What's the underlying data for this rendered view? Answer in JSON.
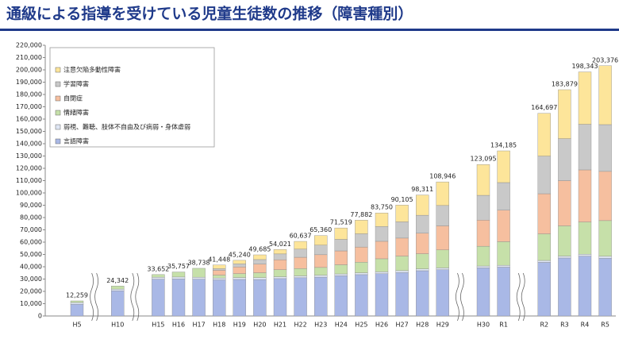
{
  "chart_data": {
    "type": "stacked_bar",
    "title": "通級による指導を受けている児童生徒数の推移（障害種別）",
    "categories": [
      "H5",
      "H10",
      "H15",
      "H16",
      "H17",
      "H18",
      "H19",
      "H20",
      "H21",
      "H22",
      "H23",
      "H24",
      "H25",
      "H26",
      "H27",
      "H28",
      "H29",
      "H30",
      "R1",
      "R2",
      "R3",
      "R4",
      "R5"
    ],
    "series": [
      {
        "name": "言語障害",
        "color": "#a9b8e6",
        "values": [
          9544,
          20461,
          29907,
          30075,
          29907,
          29340,
          29713,
          29635,
          30390,
          31066,
          31607,
          32674,
          33606,
          34375,
          35337,
          36793,
          37561,
          39106,
          39691,
          43633,
          47138,
          48628,
          47000
        ]
      },
      {
        "name": "弱視、難聴、肢体不自由及び病弱・身体虚弱",
        "color": "#dfe6f4",
        "values": [
          1378,
          1388,
          1600,
          1600,
          1600,
          1500,
          1500,
          1500,
          1500,
          1500,
          1500,
          1500,
          1500,
          1500,
          1500,
          1500,
          1500,
          1500,
          1500,
          1500,
          1500,
          1500,
          1500
        ]
      },
      {
        "name": "情緒障害",
        "color": "#c6e0a9",
        "values": [
          1337,
          2493,
          2145,
          4082,
          7231,
          2365,
          3197,
          3985,
          5737,
          5990,
          6332,
          7450,
          8613,
          10620,
          11824,
          12282,
          14609,
          16066,
          19189,
          21607,
          24590,
          26271,
          29000
        ]
      },
      {
        "name": "自閉症",
        "color": "#f6bf9f",
        "values": [
          0,
          0,
          0,
          0,
          0,
          3912,
          5469,
          7047,
          8064,
          9148,
          10342,
          11274,
          12308,
          14189,
          14636,
          16737,
          19567,
          21237,
          25635,
          32597,
          36760,
          42330,
          40000
        ]
      },
      {
        "name": "学習障害",
        "color": "#c9c9c9",
        "values": [
          0,
          0,
          0,
          0,
          0,
          1351,
          2485,
          3682,
          4726,
          6655,
          7813,
          9350,
          10769,
          12006,
          13188,
          14543,
          16545,
          20125,
          22389,
          30612,
          34135,
          37047,
          38000
        ]
      },
      {
        "name": "注意欠陥多動性障害",
        "color": "#fde59a",
        "values": [
          0,
          0,
          0,
          0,
          0,
          2980,
          2876,
          3836,
          3604,
          6278,
          7766,
          9271,
          11086,
          11060,
          13620,
          16456,
          19164,
          25061,
          25781,
          34748,
          39756,
          42567,
          47876
        ]
      }
    ],
    "totals": [
      12259,
      24342,
      33652,
      35757,
      38738,
      41448,
      45240,
      49685,
      54021,
      60637,
      65360,
      71519,
      77882,
      83750,
      90105,
      98311,
      108946,
      123095,
      134185,
      164697,
      183879,
      198343,
      203376
    ],
    "total_labels": [
      "12,259",
      "24,342",
      "33,652",
      "35,757",
      "38,738",
      "41,448",
      "45,240",
      "49,685",
      "54,021",
      "60,637",
      "65,360",
      "71,519",
      "77,882",
      "83,750",
      "90,105",
      "98,311",
      "108,946",
      "123,095",
      "134,185",
      "164,697",
      "183,879",
      "198,343",
      "203,376"
    ],
    "ylim": [
      0,
      220000
    ],
    "yticks": [
      {
        "value": 0,
        "label": "0"
      },
      {
        "value": 10000,
        "label": "10,000"
      },
      {
        "value": 20000,
        "label": "20,000"
      },
      {
        "value": 30000,
        "label": "30,000"
      },
      {
        "value": 40000,
        "label": "40,000"
      },
      {
        "value": 50000,
        "label": "50,000"
      },
      {
        "value": 60000,
        "label": "60,000"
      },
      {
        "value": 70000,
        "label": "70,000"
      },
      {
        "value": 80000,
        "label": "80,000"
      },
      {
        "value": 90000,
        "label": "90,000"
      },
      {
        "value": 100000,
        "label": "100,000"
      },
      {
        "value": 110000,
        "label": "110,000"
      },
      {
        "value": 120000,
        "label": "120,000"
      },
      {
        "value": 130000,
        "label": "130,000"
      },
      {
        "value": 140000,
        "label": "140,000"
      },
      {
        "value": 150000,
        "label": "150,000"
      },
      {
        "value": 160000,
        "label": "160,000"
      },
      {
        "value": 170000,
        "label": "170,000"
      },
      {
        "value": 180000,
        "label": "180,000"
      },
      {
        "value": 190000,
        "label": "190,000"
      },
      {
        "value": 200000,
        "label": "200,000"
      },
      {
        "value": 210000,
        "label": "210,000"
      },
      {
        "value": 220000,
        "label": "220,000"
      }
    ],
    "grid": false
  }
}
